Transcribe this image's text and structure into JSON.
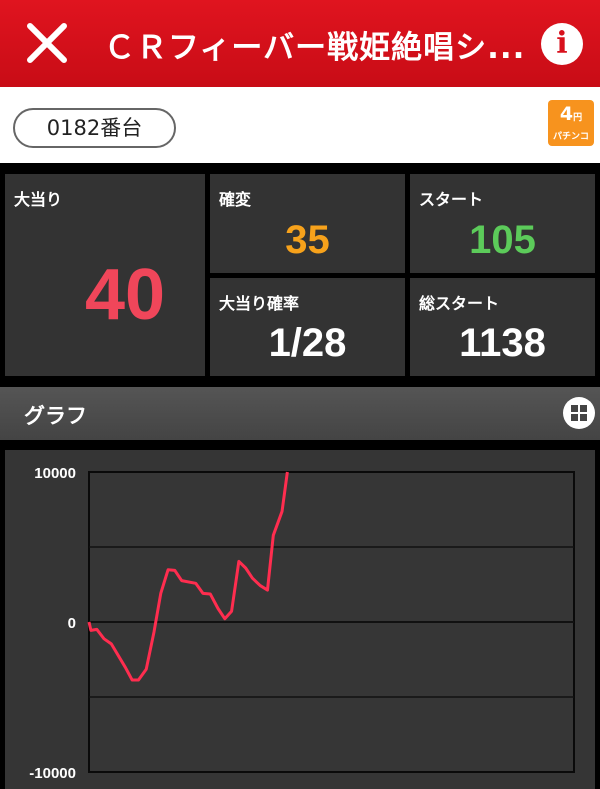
{
  "header": {
    "title": "ＣＲフィーバー戦姫絶唱シ...",
    "close_icon": "close-icon",
    "info_icon": "info-icon",
    "color": "#d8101c"
  },
  "machine": {
    "number_label": "0182番台",
    "badge": {
      "amount": "4",
      "unit": "円",
      "type": "パチンコ",
      "color": "#f7931e"
    }
  },
  "stats": {
    "big_hits": {
      "label": "大当り",
      "value": "40",
      "color": "#f0465a"
    },
    "kakuhen": {
      "label": "確変",
      "value": "35",
      "color": "#f7a21b"
    },
    "start": {
      "label": "スタート",
      "value": "105",
      "color": "#5ccb5a"
    },
    "hit_rate": {
      "label": "大当り確率",
      "value": "1/28"
    },
    "total_start": {
      "label": "総スタート",
      "value": "1138"
    }
  },
  "graph_section": {
    "label": "グラフ",
    "grid_icon": "grid-icon"
  },
  "chart_data": {
    "type": "line",
    "ylim": [
      -10000,
      10000
    ],
    "xlim": [
      0,
      100
    ],
    "yticks": [
      "10000",
      "0",
      "-10000"
    ],
    "grid": true,
    "line_color": "#ff2d4f",
    "points": [
      [
        0,
        0
      ],
      [
        0.4,
        -560
      ],
      [
        1.6,
        -490
      ],
      [
        3.1,
        -1120
      ],
      [
        4.6,
        -1460
      ],
      [
        7.5,
        -3030
      ],
      [
        8.9,
        -3870
      ],
      [
        10.2,
        -3870
      ],
      [
        11.8,
        -3150
      ],
      [
        13.4,
        -670
      ],
      [
        14.8,
        1910
      ],
      [
        16.3,
        3480
      ],
      [
        17.7,
        3440
      ],
      [
        19.1,
        2760
      ],
      [
        22,
        2580
      ],
      [
        23.5,
        1910
      ],
      [
        25,
        1870
      ],
      [
        26.6,
        900
      ],
      [
        28,
        220
      ],
      [
        29.4,
        720
      ],
      [
        30.9,
        4040
      ],
      [
        32.3,
        3600
      ],
      [
        33.7,
        2920
      ],
      [
        35.3,
        2430
      ],
      [
        36.8,
        2130
      ],
      [
        38,
        5780
      ],
      [
        39.8,
        7370
      ],
      [
        40.9,
        10000
      ]
    ]
  }
}
